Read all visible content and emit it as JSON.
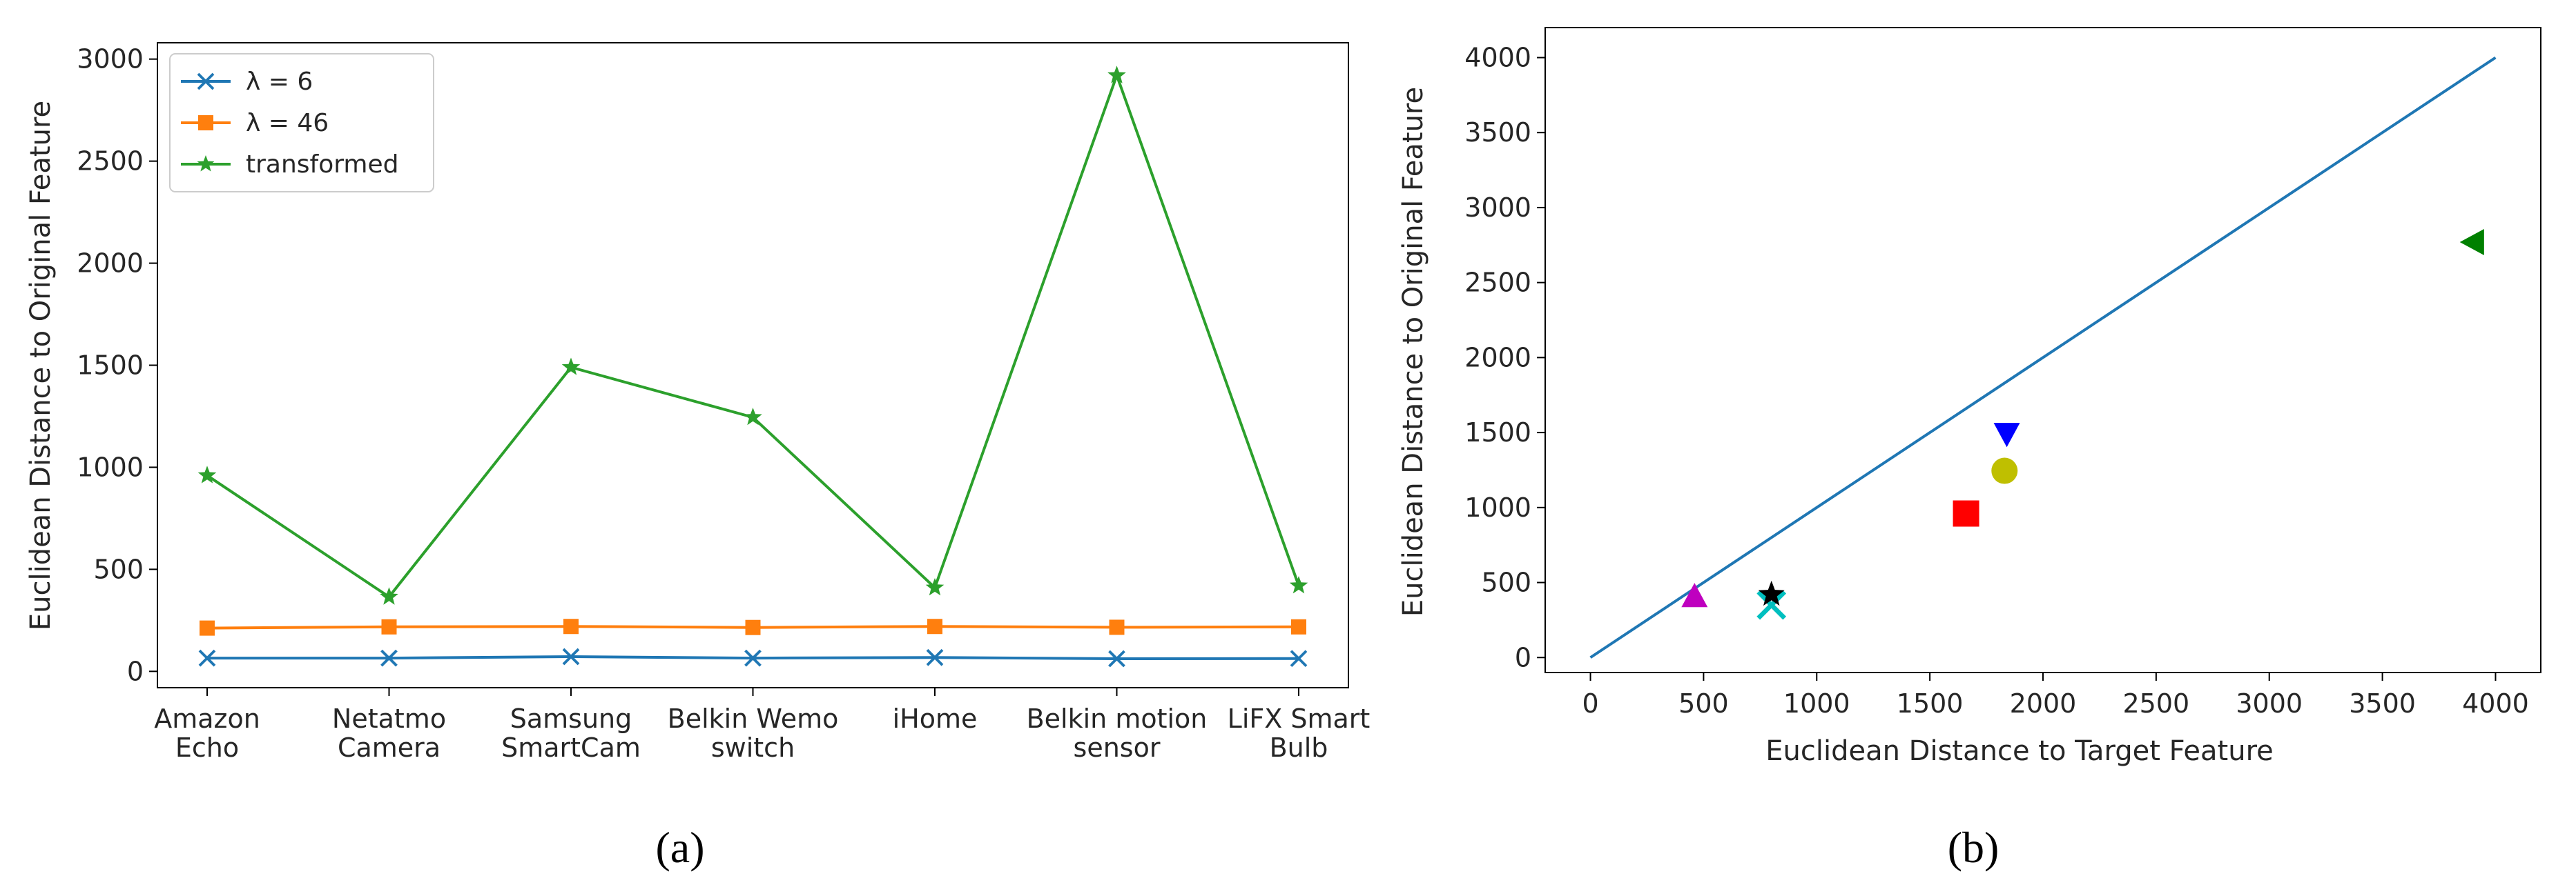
{
  "captions": [
    "(a)",
    "(b)"
  ],
  "chart_data": [
    {
      "type": "line",
      "ylabel": "Euclidean Distance to Original Feature",
      "xlabel": "",
      "ylim": [
        -80,
        3080
      ],
      "yticks": [
        0,
        500,
        1000,
        1500,
        2000,
        2500,
        3000
      ],
      "categories": [
        [
          "Amazon",
          "Echo"
        ],
        [
          "Netatmo",
          "Camera"
        ],
        [
          "Samsung",
          "SmartCam"
        ],
        [
          "Belkin Wemo",
          "switch"
        ],
        [
          "iHome"
        ],
        [
          "Belkin motion",
          "sensor"
        ],
        [
          "LiFX Smart",
          "Bulb"
        ]
      ],
      "legend_position": "top-left",
      "series": [
        {
          "name": "λ = 6",
          "color": "#1f77b4",
          "marker": "x",
          "values": [
            65,
            65,
            72,
            65,
            68,
            62,
            63
          ]
        },
        {
          "name": "λ = 46",
          "color": "#ff7f0e",
          "marker": "square",
          "values": [
            212,
            218,
            220,
            215,
            220,
            216,
            218
          ]
        },
        {
          "name": "transformed",
          "color": "#2ca02c",
          "marker": "star",
          "values": [
            960,
            365,
            1490,
            1245,
            410,
            2920,
            420
          ]
        }
      ]
    },
    {
      "type": "scatter",
      "xlabel": "Euclidean Distance to Target Feature",
      "ylabel": "Euclidean Distance to Original Feature",
      "xlim": [
        -200,
        4200
      ],
      "ylim": [
        -100,
        4200
      ],
      "xticks": [
        0,
        500,
        1000,
        1500,
        2000,
        2500,
        3000,
        3500,
        4000
      ],
      "yticks": [
        0,
        500,
        1000,
        1500,
        2000,
        2500,
        3000,
        3500,
        4000
      ],
      "line": {
        "color": "#1f77b4",
        "x": [
          0,
          4000
        ],
        "y": [
          0,
          4000
        ]
      },
      "points": [
        {
          "x": 460,
          "y": 410,
          "marker": "triangle-up",
          "color": "#bf00bf"
        },
        {
          "x": 800,
          "y": 350,
          "marker": "x",
          "color": "#00bfbf"
        },
        {
          "x": 800,
          "y": 420,
          "marker": "star",
          "color": "#000000"
        },
        {
          "x": 1660,
          "y": 960,
          "marker": "square",
          "color": "#ff0000"
        },
        {
          "x": 1840,
          "y": 1490,
          "marker": "triangle-down",
          "color": "#0000ff"
        },
        {
          "x": 1830,
          "y": 1245,
          "marker": "circle",
          "color": "#bfbf00"
        },
        {
          "x": 3900,
          "y": 2770,
          "marker": "triangle-left",
          "color": "#008000"
        }
      ]
    }
  ]
}
